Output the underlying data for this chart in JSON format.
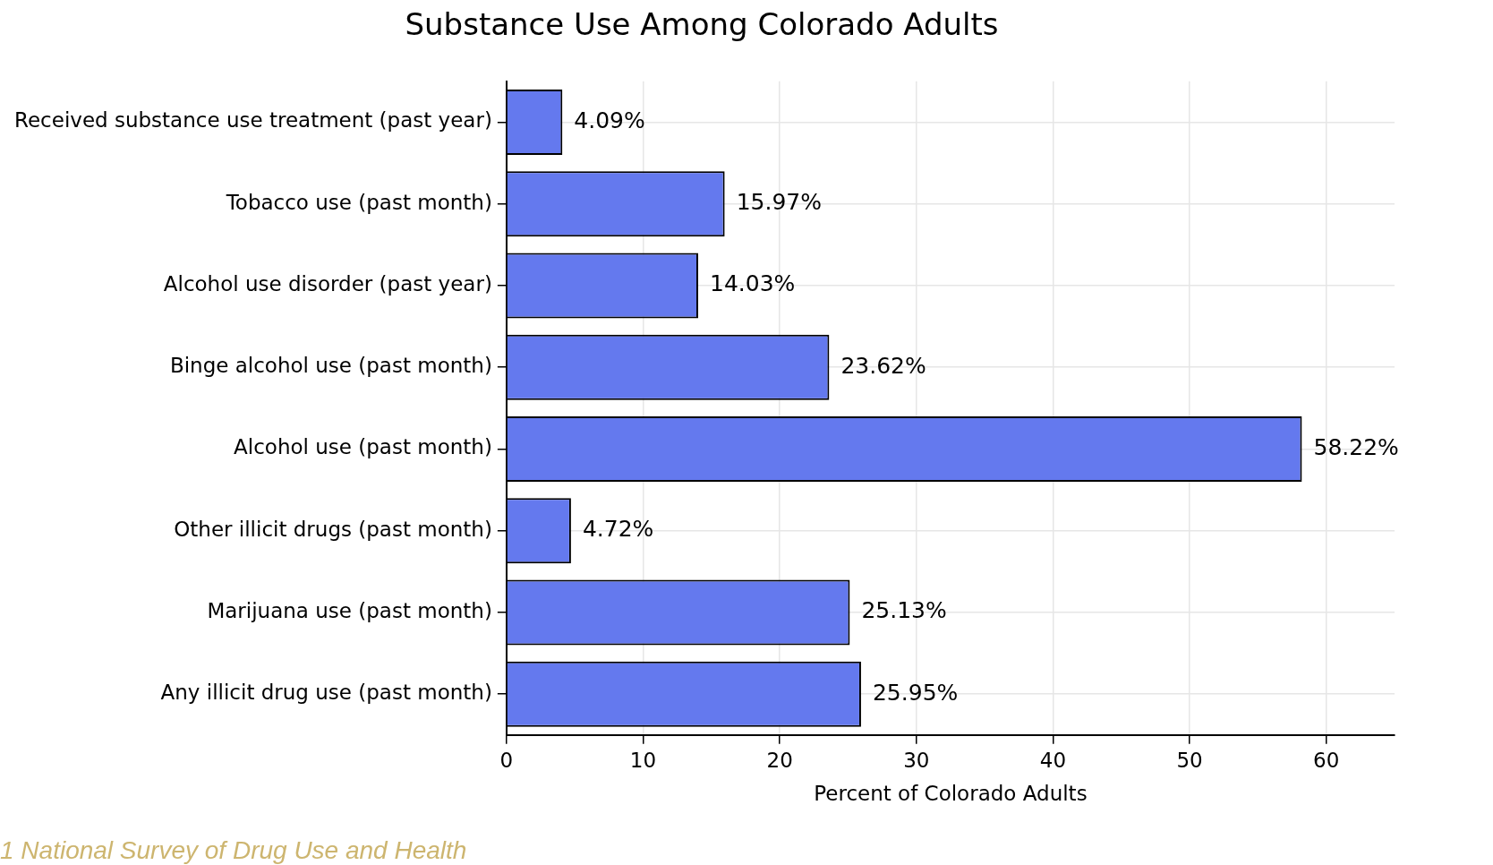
{
  "chart_data": {
    "type": "bar",
    "orientation": "horizontal",
    "title": "Substance Use Among Colorado Adults",
    "xlabel": "Percent of Colorado Adults",
    "categories": [
      "Received substance use treatment (past year)",
      "Tobacco use (past month)",
      "Alcohol use disorder (past year)",
      "Binge alcohol use (past month)",
      "Alcohol use (past month)",
      "Other illicit drugs (past month)",
      "Marijuana use (past month)",
      "Any illicit drug use (past month)"
    ],
    "values": [
      4.09,
      15.97,
      14.03,
      23.62,
      58.22,
      4.72,
      25.13,
      25.95
    ],
    "value_labels": [
      "4.09%",
      "15.97%",
      "14.03%",
      "23.62%",
      "58.22%",
      "4.72%",
      "25.13%",
      "25.95%"
    ],
    "color": "#6479ee",
    "xlim": [
      0,
      65
    ],
    "xticks": [
      0,
      10,
      20,
      30,
      40,
      50,
      60
    ],
    "grid": true,
    "legend": false,
    "annotations": [
      "1 National Survey of Drug Use and Health"
    ]
  }
}
